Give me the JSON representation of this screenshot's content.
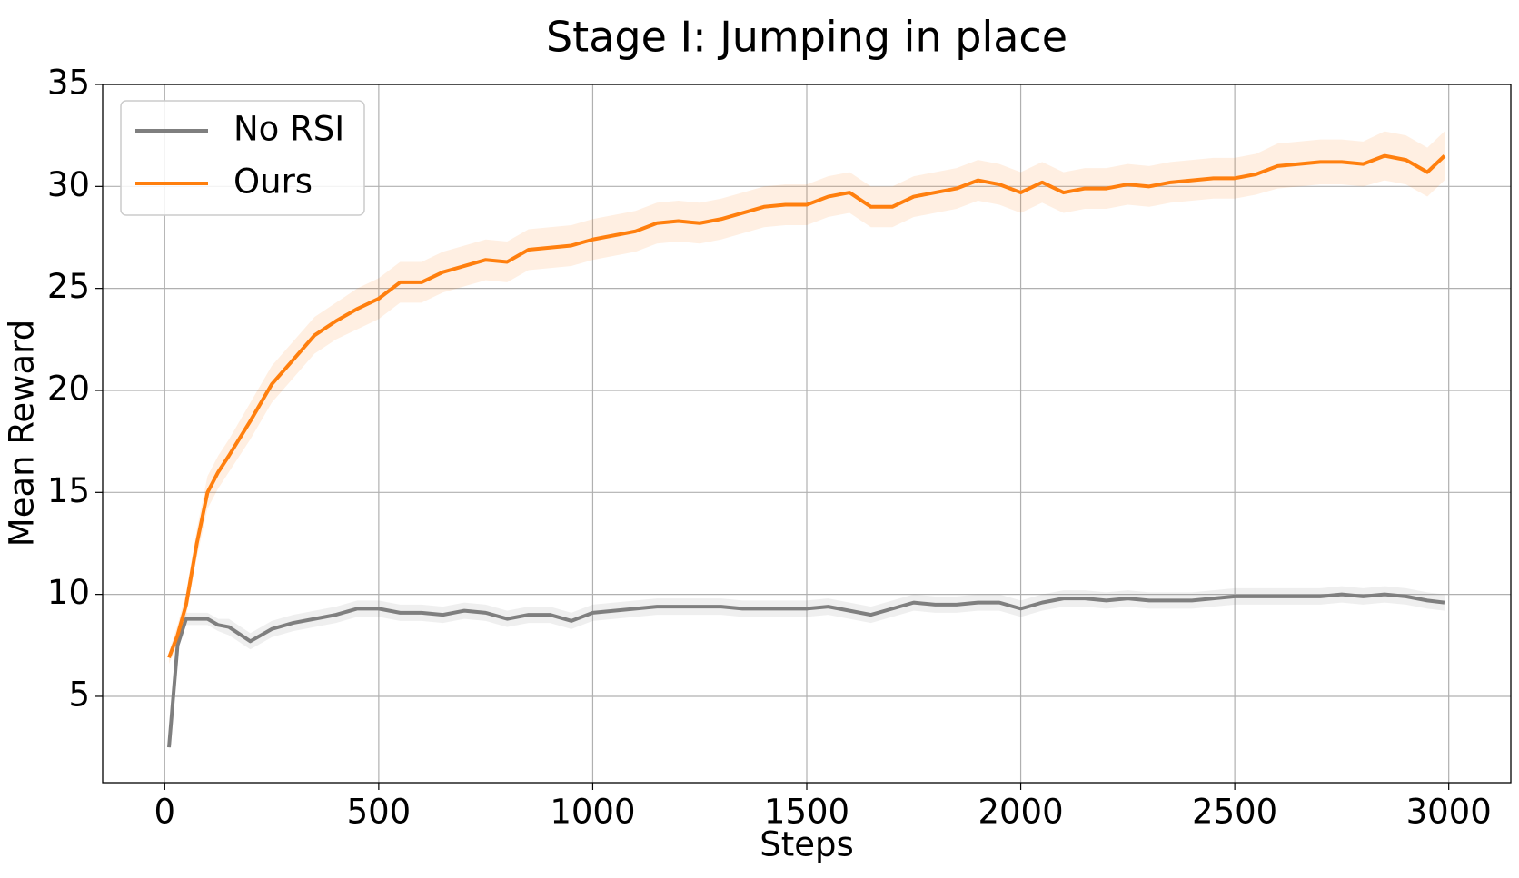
{
  "chart_data": {
    "type": "line",
    "title": "Stage I: Jumping in place",
    "xlabel": "Steps",
    "ylabel": "Mean Reward",
    "x": [
      10,
      30,
      50,
      75,
      100,
      125,
      150,
      200,
      250,
      300,
      350,
      400,
      450,
      500,
      550,
      600,
      650,
      700,
      750,
      800,
      850,
      900,
      950,
      1000,
      1050,
      1100,
      1150,
      1200,
      1250,
      1300,
      1350,
      1400,
      1450,
      1500,
      1550,
      1600,
      1650,
      1700,
      1750,
      1800,
      1850,
      1900,
      1950,
      2000,
      2050,
      2100,
      2150,
      2200,
      2250,
      2300,
      2350,
      2400,
      2450,
      2500,
      2550,
      2600,
      2650,
      2700,
      2750,
      2800,
      2850,
      2900,
      2950,
      2990
    ],
    "series": [
      {
        "name": "No RSI",
        "color": "#7f7f7f",
        "values": [
          2.5,
          7.5,
          8.8,
          8.8,
          8.8,
          8.5,
          8.4,
          7.7,
          8.3,
          8.6,
          8.8,
          9,
          9.3,
          9.3,
          9.1,
          9.1,
          9,
          9.2,
          9.1,
          8.8,
          9,
          9,
          8.7,
          9.1,
          9.2,
          9.3,
          9.4,
          9.4,
          9.4,
          9.4,
          9.3,
          9.3,
          9.3,
          9.3,
          9.4,
          9.2,
          9,
          9.3,
          9.6,
          9.5,
          9.5,
          9.6,
          9.6,
          9.3,
          9.6,
          9.8,
          9.8,
          9.7,
          9.8,
          9.7,
          9.7,
          9.7,
          9.8,
          9.9,
          9.9,
          9.9,
          9.9,
          9.9,
          10,
          9.9,
          10,
          9.9,
          9.7,
          9.6
        ],
        "errors": [
          0.2,
          0.3,
          0.3,
          0.3,
          0.3,
          0.3,
          0.4,
          0.4,
          0.4,
          0.4,
          0.4,
          0.4,
          0.4,
          0.4,
          0.4,
          0.4,
          0.4,
          0.4,
          0.4,
          0.4,
          0.4,
          0.4,
          0.4,
          0.4,
          0.4,
          0.4,
          0.4,
          0.4,
          0.4,
          0.4,
          0.4,
          0.4,
          0.4,
          0.4,
          0.4,
          0.4,
          0.4,
          0.4,
          0.4,
          0.4,
          0.4,
          0.4,
          0.4,
          0.4,
          0.4,
          0.4,
          0.4,
          0.4,
          0.4,
          0.4,
          0.4,
          0.4,
          0.4,
          0.4,
          0.4,
          0.4,
          0.4,
          0.4,
          0.4,
          0.4,
          0.4,
          0.4,
          0.4,
          0.4
        ]
      },
      {
        "name": "Ours",
        "color": "#ff7f0e",
        "values": [
          6.9,
          8,
          9.5,
          12.5,
          15,
          16,
          16.8,
          18.5,
          20.3,
          21.5,
          22.7,
          23.4,
          24,
          24.5,
          25.3,
          25.3,
          25.8,
          26.1,
          26.4,
          26.3,
          26.9,
          27,
          27.1,
          27.4,
          27.6,
          27.8,
          28.2,
          28.3,
          28.2,
          28.4,
          28.7,
          29,
          29.1,
          29.1,
          29.5,
          29.7,
          29,
          29,
          29.5,
          29.7,
          29.9,
          30.3,
          30.1,
          29.7,
          30.2,
          29.7,
          29.9,
          29.9,
          30.1,
          30,
          30.2,
          30.3,
          30.4,
          30.4,
          30.6,
          31,
          31.1,
          31.2,
          31.2,
          31.1,
          31.5,
          31.3,
          30.7,
          31.5
        ],
        "errors": [
          0.3,
          0.5,
          0.6,
          0.7,
          0.8,
          0.8,
          0.8,
          0.9,
          0.9,
          0.9,
          0.9,
          0.9,
          1,
          1,
          1,
          1,
          1,
          1,
          1,
          1,
          1,
          1,
          1,
          1,
          1,
          1,
          1,
          1,
          1,
          1,
          1,
          1,
          1,
          1,
          1,
          1,
          1,
          1,
          1,
          1,
          1,
          1,
          1,
          1,
          1,
          1,
          1,
          1,
          1,
          1,
          1,
          1,
          1,
          1,
          1,
          1.1,
          1.1,
          1.1,
          1.1,
          1.1,
          1.2,
          1.2,
          1.2,
          1.2
        ]
      }
    ],
    "xlim": [
      -145,
      3145
    ],
    "ylim": [
      0.77,
      35
    ],
    "xticks": [
      0,
      500,
      1000,
      1500,
      2000,
      2500,
      3000
    ],
    "yticks": [
      5,
      10,
      15,
      20,
      25,
      30,
      35
    ],
    "grid": true,
    "legend": "upper left"
  }
}
